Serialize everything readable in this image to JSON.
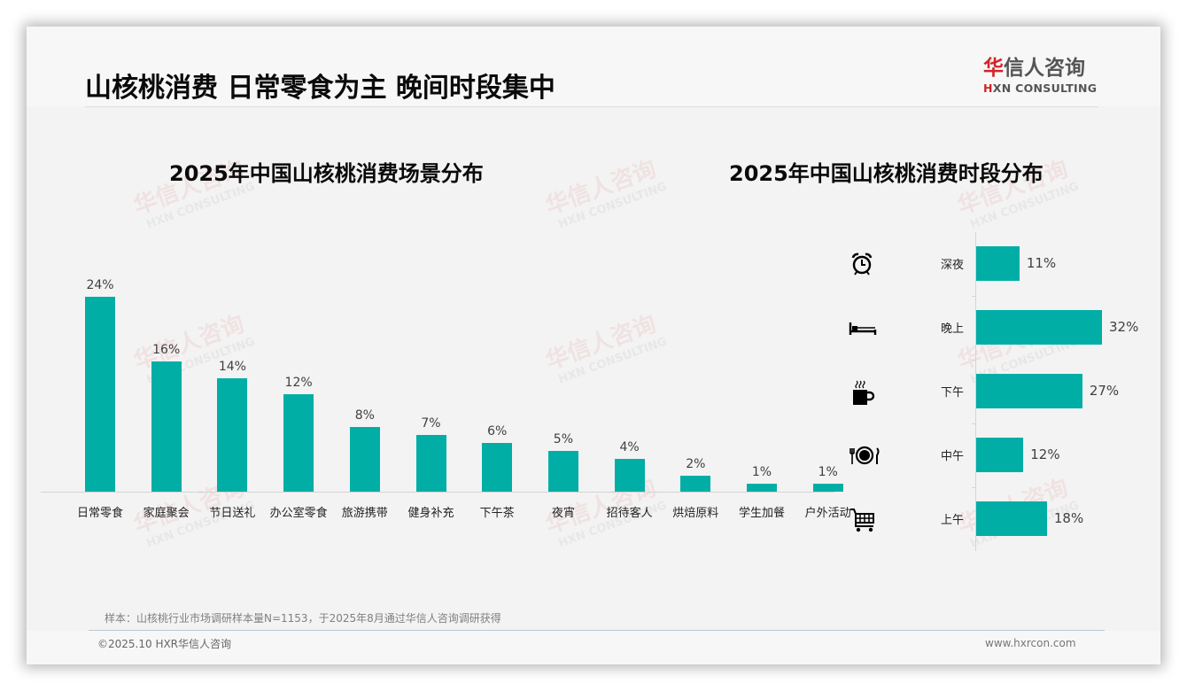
{
  "header": {
    "title": "山核桃消费 日常零食为主 晚间时段集中",
    "logo": {
      "cn_first": "华",
      "cn_rest": "信人咨询",
      "en_first": "H",
      "en_rest": "XN CONSULTING"
    }
  },
  "watermark": {
    "cn": "华信人咨询",
    "en": "HXN CONSULTING"
  },
  "colors": {
    "bar": "#00aea5",
    "logo_red": "#d2232a",
    "text": "#0a0a0a"
  },
  "chart_data": [
    {
      "type": "bar",
      "title": "2025年中国山核桃消费场景分布",
      "categories": [
        "日常零食",
        "家庭聚会",
        "节日送礼",
        "办公室零食",
        "旅游携带",
        "健身补充",
        "下午茶",
        "夜宵",
        "招待客人",
        "烘焙原料",
        "学生加餐",
        "户外活动"
      ],
      "values": [
        24,
        16,
        14,
        12,
        8,
        7,
        6,
        5,
        4,
        2,
        1,
        1
      ],
      "labels": [
        "24%",
        "16%",
        "14%",
        "12%",
        "8%",
        "7%",
        "6%",
        "5%",
        "4%",
        "2%",
        "1%",
        "1%"
      ],
      "unit": "%",
      "xlabel": "",
      "ylabel": "",
      "grid": false,
      "legend": "none"
    },
    {
      "type": "bar",
      "orientation": "horizontal",
      "title": "2025年中国山核桃消费时段分布",
      "categories": [
        "深夜",
        "晚上",
        "下午",
        "中午",
        "上午"
      ],
      "icons": [
        "alarm-clock-icon",
        "bed-icon",
        "coffee-cup-icon",
        "plate-cutlery-icon",
        "shopping-cart-icon"
      ],
      "values": [
        11,
        32,
        27,
        12,
        18
      ],
      "labels": [
        "11%",
        "32%",
        "27%",
        "12%",
        "18%"
      ],
      "unit": "%",
      "grid": false,
      "legend": "none"
    }
  ],
  "footer": {
    "note": "样本：山核桃行业市场调研样本量N=1153，于2025年8月通过华信人咨询调研获得",
    "copyright": "©2025.10 HXR华信人咨询",
    "website": "www.hxrcon.com"
  }
}
